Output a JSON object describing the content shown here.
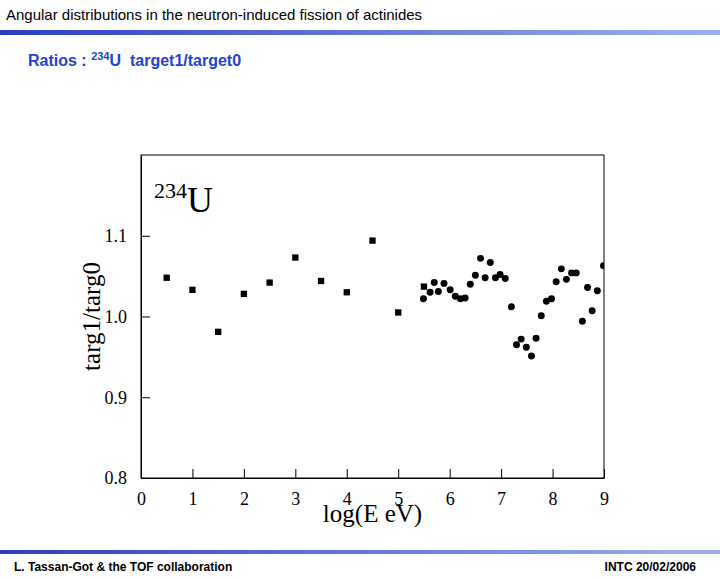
{
  "header": {
    "title": "Angular distributions in the neutron-induced fission of actinides",
    "subtitle": {
      "text_before": "Ratios : ",
      "mass": "234",
      "text_after": "U  target1/target0"
    }
  },
  "chart_data": {
    "type": "scatter",
    "annotation": {
      "mass": "234",
      "symbol": "U"
    },
    "x_label": "log(E eV)",
    "y_label": "targ1/targ0",
    "xlim": [
      0,
      9
    ],
    "xticks": [
      0,
      1,
      2,
      3,
      4,
      5,
      6,
      7,
      8,
      9
    ],
    "ylim": [
      0.8,
      1.2
    ],
    "yticks": [
      0.8,
      0.9,
      {
        "value": 1,
        "label": "1.0"
      },
      1.1
    ],
    "grid": false,
    "series": [
      {
        "marker": "square",
        "color": "#000000",
        "x": [
          0.5,
          1.0,
          1.5,
          2.0,
          2.5,
          3.0,
          3.5,
          4.0,
          4.5,
          5.0,
          5.5
        ],
        "values": [
          1.048,
          1.033,
          0.981,
          1.028,
          1.042,
          1.073,
          1.044,
          1.03,
          1.094,
          1.005,
          1.037
        ]
      },
      {
        "marker": "circle",
        "color": "#000000",
        "x": [
          5.49,
          5.62,
          5.7,
          5.78,
          5.89,
          6.01,
          6.11,
          6.21,
          6.3,
          6.4,
          6.5,
          6.6,
          6.69,
          6.79,
          6.89,
          6.98,
          7.08,
          7.2,
          7.3,
          7.39,
          7.49,
          7.59,
          7.68,
          7.78,
          7.88,
          7.98,
          8.07,
          8.17,
          8.27,
          8.37,
          8.46,
          8.58,
          8.68,
          8.77,
          8.87,
          8.99
        ],
        "values": [
          1.022,
          1.03,
          1.042,
          1.031,
          1.041,
          1.033,
          1.025,
          1.022,
          1.023,
          1.04,
          1.051,
          1.072,
          1.048,
          1.067,
          1.048,
          1.052,
          1.047,
          1.012,
          0.965,
          0.972,
          0.962,
          0.951,
          0.973,
          1.001,
          1.019,
          1.022,
          1.043,
          1.059,
          1.046,
          1.054,
          1.054,
          0.994,
          1.036,
          1.007,
          1.032,
          1.063
        ]
      }
    ]
  },
  "footer": {
    "left": "L. Tassan-Got & the TOF collaboration",
    "right": "INTC 20/02/2006"
  }
}
